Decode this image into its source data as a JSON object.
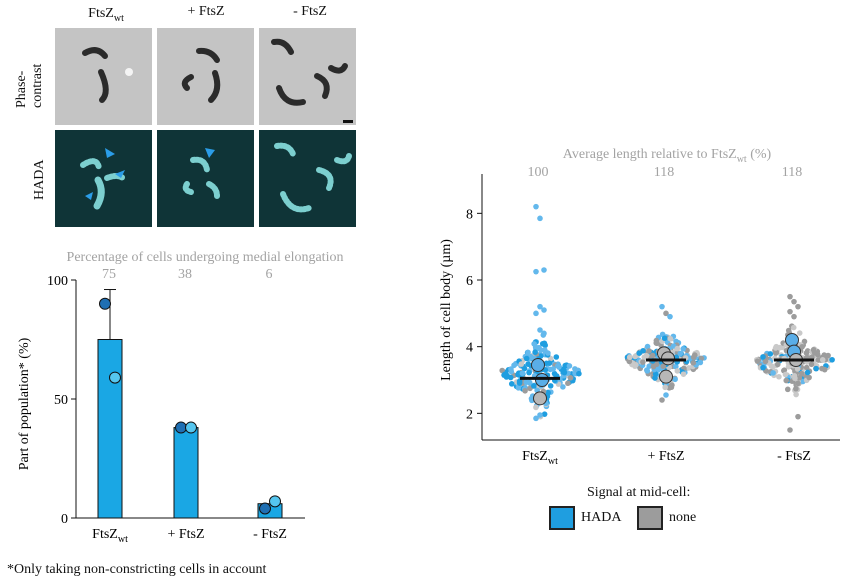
{
  "micrographs": {
    "column_labels": [
      "FtsZ",
      "+ FtsZ",
      "- FtsZ"
    ],
    "column_label_subscript": "wt",
    "row_labels": {
      "phase": "Phase-\ncontrast",
      "hada": "HADA"
    }
  },
  "colors": {
    "hada_blue": "#1f9ee0",
    "hada_light": "#63b8ec",
    "none_grey": "#9c9c9c",
    "none_light": "#c9c9c9",
    "arrow": "#2b9de8",
    "phase_bg": "#c4c4c4",
    "hada_bg": "#0f3437"
  },
  "bar_panel": {
    "header": "Percentage of cells undergoing medial elongation",
    "footnote": "*Only taking non-constricting cells in account"
  },
  "length_panel": {
    "header_prefix": "Average length relative to FtsZ",
    "header_subscript": "wt",
    "header_suffix": " (%)",
    "legend_title": "Signal at mid-cell:",
    "legend_items": [
      {
        "label": "HADA",
        "color": "#1f9ee0"
      },
      {
        "label": "none",
        "color": "#9c9c9c"
      }
    ]
  },
  "chart_data": [
    {
      "type": "bar",
      "categories": [
        "FtsZwt",
        "+ FtsZ",
        "- FtsZ"
      ],
      "values": [
        75,
        38,
        6
      ],
      "error_upper": [
        96,
        38,
        6
      ],
      "replicates": [
        [
          90,
          59
        ],
        [
          38,
          38
        ],
        [
          4,
          7
        ]
      ],
      "top_labels": [
        "75",
        "38",
        "6"
      ],
      "ylabel": "Part of population* (%)",
      "ylim": [
        0,
        100
      ],
      "yticks": [
        0,
        50,
        100
      ],
      "bar_colors": [
        "#1aa7e4",
        "#1aa7e4",
        "#1aa7e4"
      ]
    },
    {
      "type": "scatter",
      "categories": [
        "FtsZwt",
        "+ FtsZ",
        "- FtsZ"
      ],
      "ylabel": "Length of cell body (µm)",
      "ylim": [
        1.2,
        9.0
      ],
      "yticks": [
        2,
        4,
        6,
        8
      ],
      "top_labels": [
        "100",
        "118",
        "118"
      ],
      "medians": [
        3.05,
        3.6,
        3.6
      ],
      "replicate_means": [
        [
          {
            "y": 3.45,
            "signal": "HADA"
          },
          {
            "y": 2.45,
            "signal": "none"
          },
          {
            "y": 3.0,
            "signal": "HADA"
          }
        ],
        [
          {
            "y": 3.8,
            "signal": "none"
          },
          {
            "y": 3.1,
            "signal": "none"
          },
          {
            "y": 3.65,
            "signal": "none"
          }
        ],
        [
          {
            "y": 4.2,
            "signal": "HADA"
          },
          {
            "y": 3.85,
            "signal": "HADA"
          },
          {
            "y": 3.6,
            "signal": "none"
          }
        ]
      ],
      "outliers": [
        [
          8.2,
          7.85,
          6.3,
          6.25,
          5.2,
          5.1,
          5.0,
          4.5,
          4.4,
          1.85,
          1.95
        ],
        [
          5.2,
          5.0,
          4.9,
          2.4,
          2.55
        ],
        [
          5.5,
          5.35,
          5.2,
          5.05,
          4.9,
          1.9,
          1.5
        ]
      ],
      "distribution": [
        {
          "center": 3.2,
          "spread": 0.45,
          "min": 1.9,
          "max": 4.9,
          "hada_fraction": 0.78
        },
        {
          "center": 3.6,
          "spread": 0.38,
          "min": 2.4,
          "max": 5.1,
          "hada_fraction": 0.45
        },
        {
          "center": 3.55,
          "spread": 0.4,
          "min": 2.1,
          "max": 5.3,
          "hada_fraction": 0.15
        }
      ]
    }
  ]
}
